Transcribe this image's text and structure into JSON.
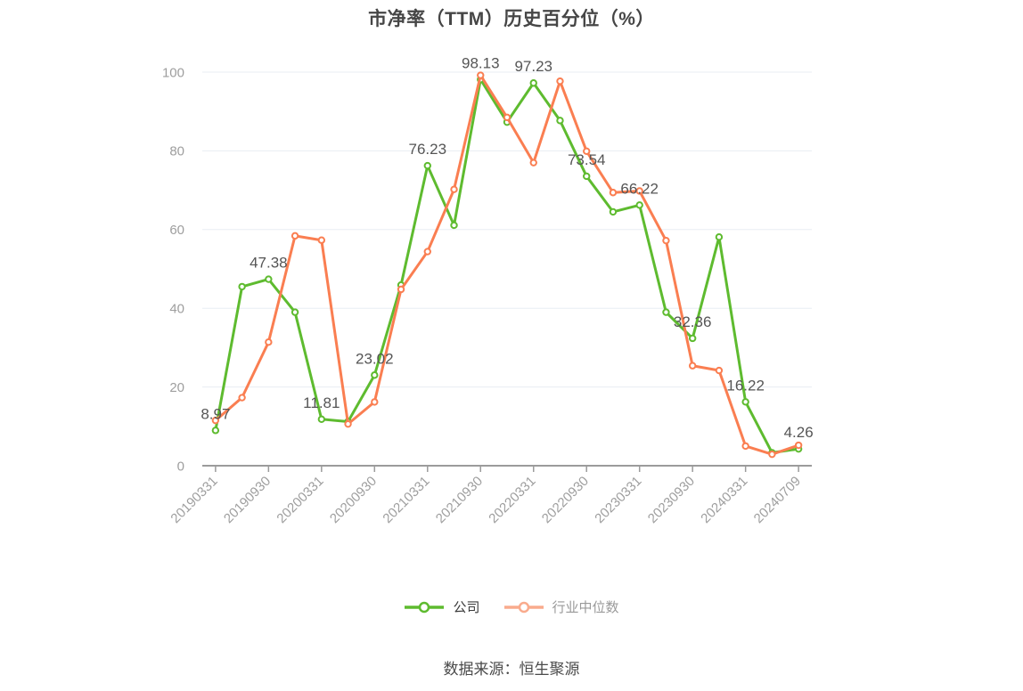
{
  "title": "市净率（TTM）历史百分位（%）",
  "source_note": "数据来源：恒生聚源",
  "legend": [
    {
      "label": "公司",
      "marker_color": "#5ebb2f",
      "text_color": "#3c3c3c"
    },
    {
      "label": "行业中位数",
      "marker_color": "#f9ab8d",
      "text_color": "#999999"
    }
  ],
  "colors": {
    "company_line": "#5ebb2f",
    "industry_line": "#fa7e51",
    "grid_line": "#e8edf3",
    "axis_line": "#9b9b9b",
    "axis_label": "#9e9e9e",
    "point_label": "#555555",
    "marker_fill": "#ffffff"
  },
  "chart_data": {
    "type": "line",
    "title": "市净率（TTM）历史百分位（%）",
    "categories": [
      "20190331",
      "20190630",
      "20190930",
      "20191231",
      "20200331",
      "20200630",
      "20200930",
      "20201231",
      "20210331",
      "20210630",
      "20210930",
      "20211231",
      "20220331",
      "20220630",
      "20220930",
      "20221231",
      "20230331",
      "20230630",
      "20230930",
      "20231231",
      "20240331",
      "20240630",
      "20240709"
    ],
    "x_tick_labels": [
      "20190331",
      "20190930",
      "20200331",
      "20200930",
      "20210331",
      "20210930",
      "20220331",
      "20220930",
      "20230331",
      "20230930",
      "20240331",
      "20240709"
    ],
    "label_indices": [
      0,
      2,
      4,
      6,
      8,
      10,
      12,
      14,
      16,
      18,
      20,
      22
    ],
    "series": [
      {
        "name": "公司",
        "color": "#5ebb2f",
        "values": [
          8.97,
          45.5,
          47.38,
          39.0,
          11.81,
          11.2,
          23.02,
          45.9,
          76.23,
          61.1,
          98.13,
          87.3,
          97.23,
          87.7,
          73.54,
          64.5,
          66.22,
          39.0,
          32.36,
          58.1,
          16.22,
          3.3,
          4.26
        ],
        "point_labels": [
          "8.97",
          "47.38",
          "11.81",
          "23.02",
          "76.23",
          "98.13",
          "97.23",
          "73.54",
          "66.22",
          "32.36",
          "16.22",
          "4.26"
        ]
      },
      {
        "name": "行业中位数",
        "color": "#fa7e51",
        "values": [
          11.5,
          17.3,
          31.4,
          58.4,
          57.3,
          10.6,
          16.2,
          44.8,
          54.4,
          70.2,
          99.2,
          88.5,
          77.0,
          97.7,
          79.9,
          69.4,
          69.8,
          57.2,
          25.4,
          24.2,
          5.0,
          2.9,
          5.2
        ],
        "point_labels": []
      }
    ],
    "ylim": [
      0,
      100
    ],
    "y_ticks": [
      0,
      20,
      40,
      60,
      80,
      100
    ],
    "grid": true,
    "x_label_rotation": -45,
    "legend_position": "bottom"
  }
}
